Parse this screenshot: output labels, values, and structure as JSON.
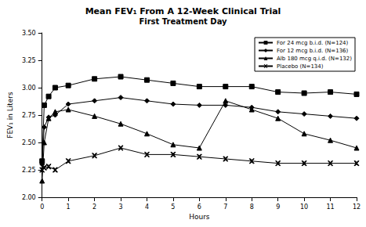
{
  "chart_data": {
    "type": "line",
    "title": "Mean FEV₁ From A 12-Week Clinical Trial",
    "subtitle": "First Treatment Day",
    "x_label": "Hours",
    "y_label": "FEV₁ in Liters",
    "x": [
      0,
      0.08,
      0.25,
      0.5,
      1,
      2,
      3,
      4,
      5,
      6,
      7,
      8,
      9,
      10,
      11,
      12
    ],
    "series": [
      {
        "name": "For 24 mcg b.i.d. (N=124)",
        "color": "#000000",
        "marker": "square",
        "values": [
          2.33,
          2.84,
          2.92,
          3.0,
          3.02,
          3.08,
          3.1,
          3.07,
          3.04,
          3.01,
          3.01,
          3.01,
          2.96,
          2.95,
          2.96,
          2.94
        ]
      },
      {
        "name": "For 12 mcg b.i.d. (N=136)",
        "color": "#000000",
        "marker": "diamond",
        "values": [
          2.3,
          2.64,
          2.73,
          2.75,
          2.85,
          2.88,
          2.91,
          2.88,
          2.85,
          2.84,
          2.84,
          2.82,
          2.78,
          2.76,
          2.74,
          2.72
        ]
      },
      {
        "name": "Alb 180 mcg q.i.d. (N=132)",
        "color": "#000000",
        "marker": "triangle",
        "values": [
          2.15,
          2.5,
          2.72,
          2.78,
          2.8,
          2.74,
          2.67,
          2.58,
          2.48,
          2.45,
          2.88,
          2.8,
          2.72,
          2.58,
          2.52,
          2.45
        ]
      },
      {
        "name": "Placebo (N=134)",
        "color": "#000000",
        "marker": "x",
        "values": [
          2.25,
          2.27,
          2.28,
          2.25,
          2.33,
          2.38,
          2.45,
          2.39,
          2.39,
          2.37,
          2.35,
          2.33,
          2.31,
          2.31,
          2.31,
          2.31
        ]
      }
    ],
    "xlim": [
      0,
      12
    ],
    "xticks": [
      0,
      1,
      2,
      3,
      4,
      5,
      6,
      7,
      8,
      9,
      10,
      11,
      12
    ],
    "ylim": [
      2,
      3.5
    ],
    "yticks": [
      {
        "value": 2,
        "label": "2.00"
      },
      {
        "value": 2.25,
        "label": "2.25"
      },
      {
        "value": 2.5,
        "label": "2.50"
      },
      {
        "value": 2.75,
        "label": "2.75"
      },
      {
        "value": 3,
        "label": "3.00"
      },
      {
        "value": 3.25,
        "label": "3.25"
      },
      {
        "value": 3.5,
        "label": "3.50"
      }
    ],
    "grid": false,
    "legend": "upper right"
  }
}
